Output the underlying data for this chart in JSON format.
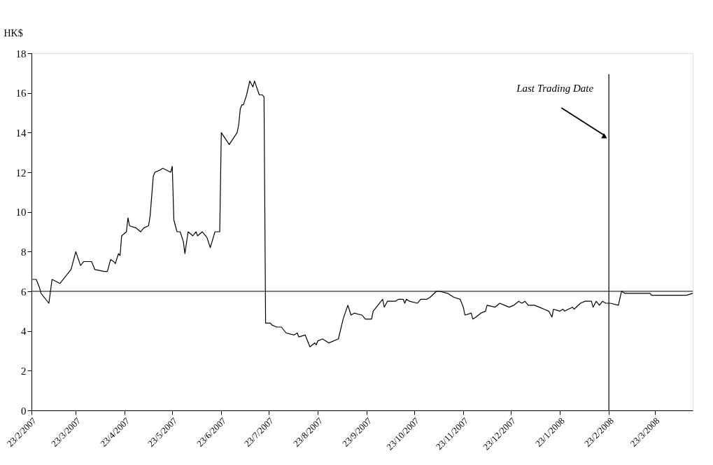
{
  "chart_data": {
    "type": "line",
    "ylabel": "HK$",
    "x": [
      "2007-02-23",
      "2007-02-26",
      "2007-02-28",
      "2007-03-01",
      "2007-03-06",
      "2007-03-08",
      "2007-03-13",
      "2007-03-20",
      "2007-03-23",
      "2007-03-26",
      "2007-03-28",
      "2007-04-02",
      "2007-04-04",
      "2007-04-10",
      "2007-04-12",
      "2007-04-14",
      "2007-04-16",
      "2007-04-17",
      "2007-04-19",
      "2007-04-20",
      "2007-04-21",
      "2007-04-24",
      "2007-04-25",
      "2007-04-26",
      "2007-04-30",
      "2007-05-03",
      "2007-05-05",
      "2007-05-08",
      "2007-05-09",
      "2007-05-11",
      "2007-05-12",
      "2007-05-15",
      "2007-05-17",
      "2007-05-22",
      "2007-05-23",
      "2007-05-24",
      "2007-05-26",
      "2007-05-28",
      "2007-05-30",
      "2007-05-31",
      "2007-06-02",
      "2007-06-05",
      "2007-06-07",
      "2007-06-08",
      "2007-06-11",
      "2007-06-13",
      "2007-06-14",
      "2007-06-16",
      "2007-06-19",
      "2007-06-22",
      "2007-06-23",
      "2007-06-28",
      "2007-07-03",
      "2007-07-04",
      "2007-07-05",
      "2007-07-06",
      "2007-07-07",
      "2007-07-09",
      "2007-07-11",
      "2007-07-13",
      "2007-07-14",
      "2007-07-17",
      "2007-07-19",
      "2007-07-20",
      "2007-07-21",
      "2007-07-24",
      "2007-07-25",
      "2007-07-28",
      "2007-07-31",
      "2007-08-03",
      "2007-08-08",
      "2007-08-10",
      "2007-08-11",
      "2007-08-15",
      "2007-08-18",
      "2007-08-21",
      "2007-08-22",
      "2007-08-23",
      "2007-08-26",
      "2007-08-30",
      "2007-09-05",
      "2007-09-08",
      "2007-09-11",
      "2007-09-13",
      "2007-09-15",
      "2007-09-20",
      "2007-09-22",
      "2007-09-26",
      "2007-09-27",
      "2007-09-30",
      "2007-10-03",
      "2007-10-04",
      "2007-10-06",
      "2007-10-11",
      "2007-10-13",
      "2007-10-16",
      "2007-10-17",
      "2007-10-18",
      "2007-10-20",
      "2007-10-25",
      "2007-10-27",
      "2007-10-31",
      "2007-11-02",
      "2007-11-06",
      "2007-11-08",
      "2007-11-13",
      "2007-11-17",
      "2007-11-21",
      "2007-11-23",
      "2007-11-24",
      "2007-11-28",
      "2007-11-29",
      "2007-12-01",
      "2007-12-04",
      "2007-12-07",
      "2007-12-08",
      "2007-12-13",
      "2007-12-16",
      "2007-12-19",
      "2007-12-22",
      "2007-12-25",
      "2007-12-28",
      "2007-12-30",
      "2008-01-01",
      "2008-01-03",
      "2008-01-07",
      "2008-01-10",
      "2008-01-13",
      "2008-01-16",
      "2008-01-18",
      "2008-01-19",
      "2008-01-23",
      "2008-01-25",
      "2008-01-26",
      "2008-01-31",
      "2008-02-01",
      "2008-02-05",
      "2008-02-08",
      "2008-02-12",
      "2008-02-13",
      "2008-02-15",
      "2008-02-17",
      "2008-02-19",
      "2008-02-21",
      "2008-02-24",
      "2008-02-29",
      "2008-03-02",
      "2008-03-04",
      "2008-03-20",
      "2008-03-21",
      "2008-04-12",
      "2008-04-16"
    ],
    "series": [
      {
        "color": "#000000",
        "values": [
          6.6,
          6.6,
          6.2,
          5.9,
          5.4,
          6.6,
          6.4,
          7.1,
          8.0,
          7.3,
          7.5,
          7.5,
          7.1,
          7.0,
          7.0,
          7.6,
          7.5,
          7.4,
          7.9,
          7.8,
          8.8,
          9.0,
          9.7,
          9.3,
          9.2,
          9.0,
          9.2,
          9.3,
          9.8,
          11.8,
          12.0,
          12.1,
          12.2,
          12.0,
          12.3,
          9.6,
          9.0,
          9.0,
          8.5,
          7.9,
          9.0,
          8.8,
          9.0,
          8.8,
          9.0,
          8.8,
          8.7,
          8.2,
          9.0,
          9.0,
          14.0,
          13.4,
          14.0,
          14.4,
          15.2,
          15.4,
          15.4,
          15.9,
          16.6,
          16.3,
          16.6,
          15.9,
          15.9,
          15.8,
          4.4,
          4.4,
          4.3,
          4.2,
          4.2,
          3.9,
          3.8,
          3.9,
          3.7,
          3.8,
          3.2,
          3.4,
          3.3,
          3.5,
          3.6,
          3.4,
          3.6,
          4.6,
          5.3,
          4.8,
          4.9,
          4.8,
          4.6,
          4.6,
          5.0,
          5.3,
          5.6,
          5.2,
          5.5,
          5.5,
          5.6,
          5.6,
          5.4,
          5.6,
          5.5,
          5.4,
          5.6,
          5.6,
          5.7,
          6.0,
          6.0,
          5.9,
          5.7,
          5.6,
          5.2,
          4.8,
          4.9,
          4.6,
          4.7,
          4.9,
          5.0,
          5.3,
          5.2,
          5.4,
          5.3,
          5.2,
          5.3,
          5.5,
          5.4,
          5.5,
          5.3,
          5.3,
          5.2,
          5.1,
          5.0,
          4.7,
          5.1,
          5.0,
          5.1,
          5.0,
          5.2,
          5.1,
          5.4,
          5.5,
          5.5,
          5.2,
          5.5,
          5.3,
          5.5,
          5.4,
          5.4,
          5.3,
          6.0,
          5.9,
          5.9,
          5.8,
          5.8,
          5.9
        ]
      }
    ],
    "xlim": [
      "2007-02-23",
      "2008-04-16"
    ],
    "xticks": [
      {
        "value": "2007-02-23",
        "label": "23/2/2007"
      },
      {
        "value": "2007-03-23",
        "label": "23/3/2007"
      },
      {
        "value": "2007-04-23",
        "label": "23/4/2007"
      },
      {
        "value": "2007-05-23",
        "label": "23/5/2007"
      },
      {
        "value": "2007-06-23",
        "label": "23/6/2007"
      },
      {
        "value": "2007-07-23",
        "label": "23/7/2007"
      },
      {
        "value": "2007-08-23",
        "label": "23/8/2007"
      },
      {
        "value": "2007-09-23",
        "label": "23/9/2007"
      },
      {
        "value": "2007-10-23",
        "label": "23/10/2007"
      },
      {
        "value": "2007-11-23",
        "label": "23/11/2007"
      },
      {
        "value": "2007-12-23",
        "label": "23/12/2007"
      },
      {
        "value": "2008-01-23",
        "label": "23/1/2008"
      },
      {
        "value": "2008-02-23",
        "label": "23/2/2008"
      },
      {
        "value": "2008-03-23",
        "label": "23/3/2008"
      }
    ],
    "ylim": [
      0,
      18
    ],
    "yticks": [
      0,
      2,
      4,
      6,
      8,
      10,
      12,
      14,
      16,
      18
    ],
    "ref_lines": [
      {
        "axis": "y",
        "value": 6,
        "color": "#000000"
      },
      {
        "axis": "x",
        "value": "2008-02-23",
        "label": "Last Trading Date",
        "color": "#000000"
      }
    ],
    "grid": false,
    "legend": false,
    "marker": "none",
    "line_style": "solid"
  }
}
